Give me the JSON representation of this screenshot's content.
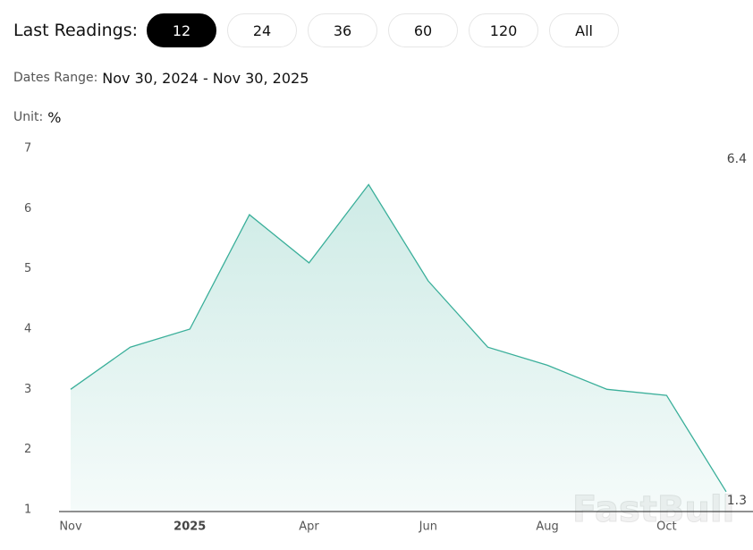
{
  "controls": {
    "label": "Last Readings:",
    "options": [
      "12",
      "24",
      "36",
      "60",
      "120",
      "All"
    ],
    "selected": 0
  },
  "dates_range": {
    "label": "Dates Range:",
    "value": "Nov 30, 2024 - Nov 30, 2025"
  },
  "unit": {
    "label": "Unit:",
    "value": "%"
  },
  "watermark": "FastBull",
  "chart_data": {
    "type": "area",
    "color": "#3aaf9a",
    "categories": [
      "Nov",
      null,
      "2025",
      null,
      "Apr",
      null,
      "Jun",
      null,
      "Aug",
      null,
      "Oct",
      null
    ],
    "values": [
      3.0,
      3.7,
      4.0,
      5.9,
      5.1,
      6.4,
      4.8,
      3.7,
      3.4,
      3.0,
      2.9,
      1.3
    ],
    "ylim": [
      1,
      7
    ],
    "yticks": [
      1,
      2,
      3,
      4,
      5,
      6,
      7
    ],
    "grid": false
  }
}
